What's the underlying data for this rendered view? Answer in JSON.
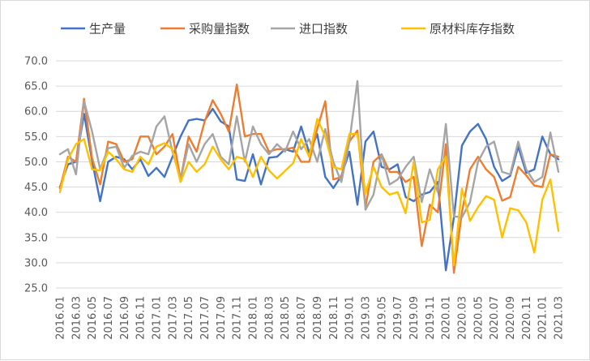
{
  "chart_data": {
    "type": "line",
    "title": "",
    "xlabel": "",
    "ylabel": "",
    "ylim": [
      25,
      70
    ],
    "yticks": [
      "25.0",
      "30.0",
      "35.0",
      "40.0",
      "45.0",
      "50.0",
      "55.0",
      "60.0",
      "65.0",
      "70.0"
    ],
    "grid": "horizontal",
    "legend_position": "top",
    "x": [
      "2016.01",
      "2016.02",
      "2016.03",
      "2016.04",
      "2016.05",
      "2016.06",
      "2016.07",
      "2016.08",
      "2016.09",
      "2016.10",
      "2016.11",
      "2016.12",
      "2017.01",
      "2017.02",
      "2017.03",
      "2017.04",
      "2017.05",
      "2017.06",
      "2017.07",
      "2017.08",
      "2017.09",
      "2017.10",
      "2017.11",
      "2017.12",
      "2018.01",
      "2018.02",
      "2018.03",
      "2018.04",
      "2018.05",
      "2018.06",
      "2018.07",
      "2018.08",
      "2018.09",
      "2018.10",
      "2018.11",
      "2018.12",
      "2019.01",
      "2019.02",
      "2019.03",
      "2019.04",
      "2019.05",
      "2019.06",
      "2019.07",
      "2019.08",
      "2019.09",
      "2019.10",
      "2019.11",
      "2019.12",
      "2020.01",
      "2020.02",
      "2020.03",
      "2020.04",
      "2020.05",
      "2020.06",
      "2020.07",
      "2020.08",
      "2020.09",
      "2020.10",
      "2020.11",
      "2020.12",
      "2021.01",
      "2021.02",
      "2021.03"
    ],
    "xtick_labels": [
      "2016.01",
      "2016.03",
      "2016.05",
      "2016.07",
      "2016.09",
      "2016.11",
      "2017.01",
      "2017.03",
      "2017.05",
      "2017.07",
      "2017.09",
      "2017.11",
      "2018.01",
      "2018.03",
      "2018.05",
      "2018.07",
      "2018.09",
      "2018.11",
      "2019.01",
      "2019.03",
      "2019.05",
      "2019.07",
      "2019.09",
      "2019.11",
      "2020.01",
      "2020.03",
      "2020.05",
      "2020.07",
      "2020.09",
      "2020.11",
      "2021.01",
      "2021.03"
    ],
    "series": [
      {
        "name": "生产量",
        "color": "#4472C4",
        "values": [
          45.0,
          49.5,
          50.0,
          59.5,
          50.2,
          42.2,
          50.0,
          51.0,
          50.5,
          48.5,
          50.5,
          47.2,
          48.8,
          47.0,
          51.0,
          55.0,
          58.2,
          58.5,
          58.2,
          60.5,
          58.0,
          57.0,
          46.5,
          46.2,
          51.5,
          45.5,
          50.8,
          51.0,
          52.5,
          52.0,
          57.0,
          51.8,
          55.5,
          47.0,
          44.8,
          47.2,
          52.0,
          41.5,
          54.0,
          56.0,
          49.0,
          48.5,
          49.5,
          43.0,
          42.2,
          43.5,
          44.0,
          46.0,
          28.5,
          39.0,
          53.2,
          56.0,
          57.5,
          54.5,
          49.0,
          46.2,
          47.2,
          53.0,
          47.8,
          48.5,
          55.0,
          51.5,
          50.5
        ]
      },
      {
        "name": "采购量指数",
        "color": "#ED7D31",
        "values": [
          44.7,
          51.0,
          50.0,
          62.5,
          50.7,
          45.5,
          54.0,
          53.5,
          50.0,
          50.5,
          55.0,
          55.0,
          51.5,
          53.0,
          55.5,
          46.5,
          55.0,
          52.0,
          58.0,
          62.2,
          59.5,
          56.0,
          65.3,
          55.0,
          55.5,
          55.5,
          52.0,
          52.5,
          52.5,
          52.8,
          50.0,
          50.0,
          56.5,
          62.0,
          46.5,
          47.0,
          54.0,
          56.2,
          41.0,
          50.0,
          51.5,
          48.0,
          48.0,
          46.0,
          47.0,
          33.3,
          41.5,
          40.0,
          53.5,
          28.0,
          40.0,
          48.5,
          51.0,
          48.5,
          47.0,
          42.3,
          43.0,
          49.0,
          47.3,
          45.3,
          45.0,
          51.5,
          51.0
        ]
      },
      {
        "name": "进口指数",
        "color": "#A5A5A5",
        "values": [
          51.5,
          52.5,
          47.5,
          62.0,
          56.0,
          48.5,
          52.7,
          53.0,
          48.8,
          51.2,
          52.0,
          51.5,
          57.0,
          59.0,
          52.0,
          46.5,
          53.5,
          50.0,
          53.5,
          55.5,
          51.0,
          49.5,
          59.0,
          50.0,
          57.0,
          53.5,
          51.5,
          53.5,
          52.0,
          56.0,
          52.5,
          54.5,
          50.0,
          56.5,
          50.0,
          46.0,
          54.0,
          66.0,
          40.5,
          43.5,
          51.5,
          45.5,
          46.5,
          49.0,
          51.0,
          42.0,
          48.5,
          44.0,
          57.5,
          39.2,
          39.0,
          42.0,
          50.0,
          53.0,
          54.0,
          48.0,
          47.5,
          54.0,
          48.5,
          46.0,
          47.0,
          55.8,
          48.0
        ]
      },
      {
        "name": "原材料库存指数",
        "color": "#FFC000",
        "values": [
          44.0,
          50.5,
          53.5,
          54.5,
          48.5,
          48.3,
          52.0,
          50.5,
          48.5,
          48.0,
          51.0,
          49.5,
          53.0,
          53.7,
          52.5,
          46.0,
          50.0,
          48.0,
          49.5,
          53.0,
          50.5,
          48.5,
          51.0,
          50.5,
          47.0,
          51.0,
          48.3,
          46.7,
          48.2,
          49.7,
          54.5,
          51.0,
          58.5,
          55.0,
          49.0,
          48.5,
          55.5,
          55.5,
          43.7,
          49.0,
          45.0,
          43.5,
          44.0,
          39.8,
          50.0,
          38.0,
          38.5,
          48.5,
          51.0,
          29.5,
          44.7,
          38.3,
          41.0,
          43.2,
          42.5,
          35.0,
          40.8,
          40.4,
          38.0,
          32.0,
          42.5,
          46.5,
          36.3
        ]
      }
    ]
  }
}
